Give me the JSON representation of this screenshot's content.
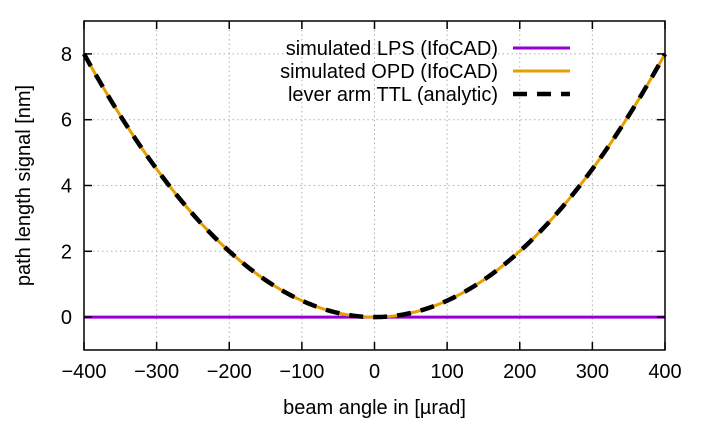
{
  "chart_data": {
    "type": "line",
    "xlabel": "beam angle in [µrad]",
    "ylabel": "path length signal [nm]",
    "xlim": [
      -400,
      400
    ],
    "ylim": [
      -1,
      9
    ],
    "x_ticks": [
      -400,
      -300,
      -200,
      -100,
      0,
      100,
      200,
      300,
      400
    ],
    "y_ticks": [
      0,
      2,
      4,
      6,
      8
    ],
    "x_tick_labels": [
      "−400",
      "−300",
      "−200",
      "−100",
      "0",
      "100",
      "200",
      "300",
      "400"
    ],
    "y_tick_labels": [
      "0",
      "2",
      "4",
      "6",
      "8"
    ],
    "grid": true,
    "legend_position": "top-right",
    "series": [
      {
        "name": "simulated LPS (IfoCAD)",
        "color": "#9400d3",
        "style": "solid",
        "x": [
          -400,
          -300,
          -200,
          -100,
          0,
          100,
          200,
          300,
          400
        ],
        "y": [
          0,
          0,
          0,
          0,
          0,
          0,
          0,
          0,
          0
        ]
      },
      {
        "name": "simulated OPD (IfoCAD)",
        "color": "#e69f00",
        "style": "solid",
        "x": [
          -400,
          -350,
          -300,
          -250,
          -200,
          -150,
          -100,
          -50,
          0,
          50,
          100,
          150,
          200,
          250,
          300,
          350,
          400
        ],
        "y": [
          8.0,
          6.125,
          4.5,
          3.125,
          2.0,
          1.125,
          0.5,
          0.125,
          0.0,
          0.125,
          0.5,
          1.125,
          2.0,
          3.125,
          4.5,
          6.125,
          8.0
        ]
      },
      {
        "name": "lever arm TTL (analytic)",
        "color": "#000000",
        "style": "dashed",
        "x": [
          -400,
          -350,
          -300,
          -250,
          -200,
          -150,
          -100,
          -50,
          0,
          50,
          100,
          150,
          200,
          250,
          300,
          350,
          400
        ],
        "y": [
          8.0,
          6.125,
          4.5,
          3.125,
          2.0,
          1.125,
          0.5,
          0.125,
          0.0,
          0.125,
          0.5,
          1.125,
          2.0,
          3.125,
          4.5,
          6.125,
          8.0
        ]
      }
    ]
  }
}
